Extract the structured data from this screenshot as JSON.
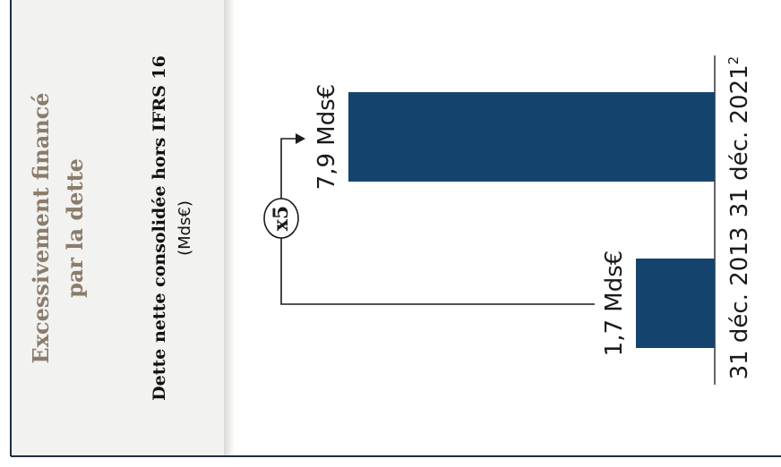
{
  "panel": {
    "heading_line1": "Excessivement financé",
    "heading_line2": "par la dette"
  },
  "chart_data": {
    "type": "bar",
    "title": "Dette nette consolidée hors IFRS 16",
    "unit": "(Mds€)",
    "categories": [
      "31 déc. 2013",
      "31 déc. 2021"
    ],
    "category_footnotes": [
      "",
      "2"
    ],
    "values": [
      1.7,
      7.9
    ],
    "value_labels": [
      "1,7 Mds€",
      "7,9 Mds€"
    ],
    "multiplier_label": "x5",
    "bar_color": "#14446e",
    "heading_color": "#8b7c6b",
    "panel_color": "#f2f2f0",
    "grid": false,
    "legend": "none"
  }
}
